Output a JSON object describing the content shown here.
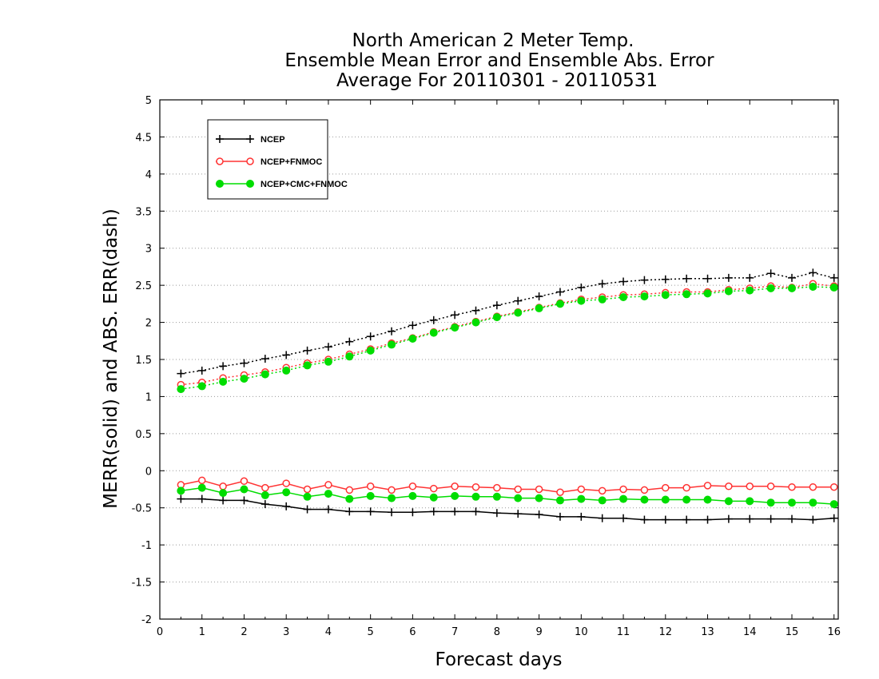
{
  "chart_data": {
    "type": "line",
    "title_lines": [
      "North American 2 Meter Temp.",
      "Ensemble Mean Error and Ensemble Abs. Error",
      "Average For 20110301 - 20110531"
    ],
    "xlabel": "Forecast days",
    "ylabel": "MERR(solid) and ABS. ERR(dash)",
    "xlim": [
      0,
      16.1
    ],
    "ylim": [
      -2,
      5
    ],
    "x_ticks": [
      0,
      1,
      2,
      3,
      4,
      5,
      6,
      7,
      8,
      9,
      10,
      11,
      12,
      13,
      14,
      15,
      16
    ],
    "y_ticks": [
      -2,
      -1.5,
      -1,
      -0.5,
      0,
      0.5,
      1,
      1.5,
      2,
      2.5,
      3,
      3.5,
      4,
      4.5,
      5
    ],
    "y_tick_labels": [
      "-2",
      "-1.5",
      "-1",
      "-0.5",
      "0",
      "0.5",
      "1",
      "1.5",
      "2",
      "2.5",
      "3",
      "3.5",
      "4",
      "4.5",
      "5"
    ],
    "grid": "horizontal dotted",
    "legend_position": "top-left",
    "x": [
      0.5,
      1,
      1.5,
      2,
      2.5,
      3,
      3.5,
      4,
      4.5,
      5,
      5.5,
      6,
      6.5,
      7,
      7.5,
      8,
      8.5,
      9,
      9.5,
      10,
      10.5,
      11,
      11.5,
      12,
      12.5,
      13,
      13.5,
      14,
      14.5,
      15,
      15.5,
      16
    ],
    "series": [
      {
        "name": "NCEP",
        "color": "#000000",
        "marker": "plus",
        "merr": [
          -0.38,
          -0.38,
          -0.4,
          -0.4,
          -0.45,
          -0.48,
          -0.52,
          -0.52,
          -0.55,
          -0.55,
          -0.56,
          -0.56,
          -0.55,
          -0.55,
          -0.55,
          -0.57,
          -0.58,
          -0.59,
          -0.62,
          -0.62,
          -0.64,
          -0.64,
          -0.66,
          -0.66,
          -0.66,
          -0.66,
          -0.65,
          -0.65,
          -0.65,
          -0.65,
          -0.66,
          -0.64
        ],
        "abs_err": [
          1.31,
          1.35,
          1.41,
          1.45,
          1.51,
          1.56,
          1.62,
          1.67,
          1.74,
          1.81,
          1.88,
          1.96,
          2.03,
          2.1,
          2.16,
          2.23,
          2.29,
          2.35,
          2.41,
          2.47,
          2.52,
          2.55,
          2.57,
          2.58,
          2.59,
          2.59,
          2.6,
          2.6,
          2.66,
          2.6,
          2.67,
          2.6
        ]
      },
      {
        "name": "NCEP+FNMOC",
        "color": "#ff3333",
        "marker": "open-circle",
        "merr": [
          -0.19,
          -0.13,
          -0.21,
          -0.14,
          -0.23,
          -0.17,
          -0.25,
          -0.19,
          -0.26,
          -0.21,
          -0.26,
          -0.21,
          -0.24,
          -0.21,
          -0.22,
          -0.23,
          -0.25,
          -0.25,
          -0.29,
          -0.25,
          -0.27,
          -0.25,
          -0.26,
          -0.23,
          -0.23,
          -0.2,
          -0.21,
          -0.21,
          -0.21,
          -0.22,
          -0.22,
          -0.22
        ],
        "abs_err": [
          1.16,
          1.19,
          1.25,
          1.29,
          1.33,
          1.39,
          1.45,
          1.5,
          1.57,
          1.64,
          1.72,
          1.79,
          1.87,
          1.94,
          2.01,
          2.08,
          2.14,
          2.2,
          2.26,
          2.31,
          2.34,
          2.37,
          2.38,
          2.4,
          2.41,
          2.41,
          2.44,
          2.46,
          2.49,
          2.47,
          2.52,
          2.49
        ]
      },
      {
        "name": "NCEP+CMC+FNMOC",
        "color": "#00dd00",
        "marker": "filled-circle",
        "merr": [
          -0.27,
          -0.23,
          -0.3,
          -0.25,
          -0.33,
          -0.29,
          -0.35,
          -0.31,
          -0.38,
          -0.34,
          -0.37,
          -0.34,
          -0.36,
          -0.34,
          -0.35,
          -0.35,
          -0.37,
          -0.37,
          -0.4,
          -0.38,
          -0.4,
          -0.38,
          -0.39,
          -0.39,
          -0.39,
          -0.39,
          -0.41,
          -0.41,
          -0.43,
          -0.43,
          -0.43,
          -0.45
        ],
        "abs_err": [
          1.1,
          1.14,
          1.2,
          1.24,
          1.3,
          1.35,
          1.42,
          1.47,
          1.54,
          1.62,
          1.7,
          1.78,
          1.86,
          1.93,
          2.0,
          2.07,
          2.13,
          2.19,
          2.25,
          2.29,
          2.31,
          2.34,
          2.35,
          2.37,
          2.38,
          2.39,
          2.42,
          2.43,
          2.46,
          2.46,
          2.48,
          2.47
        ]
      }
    ]
  }
}
